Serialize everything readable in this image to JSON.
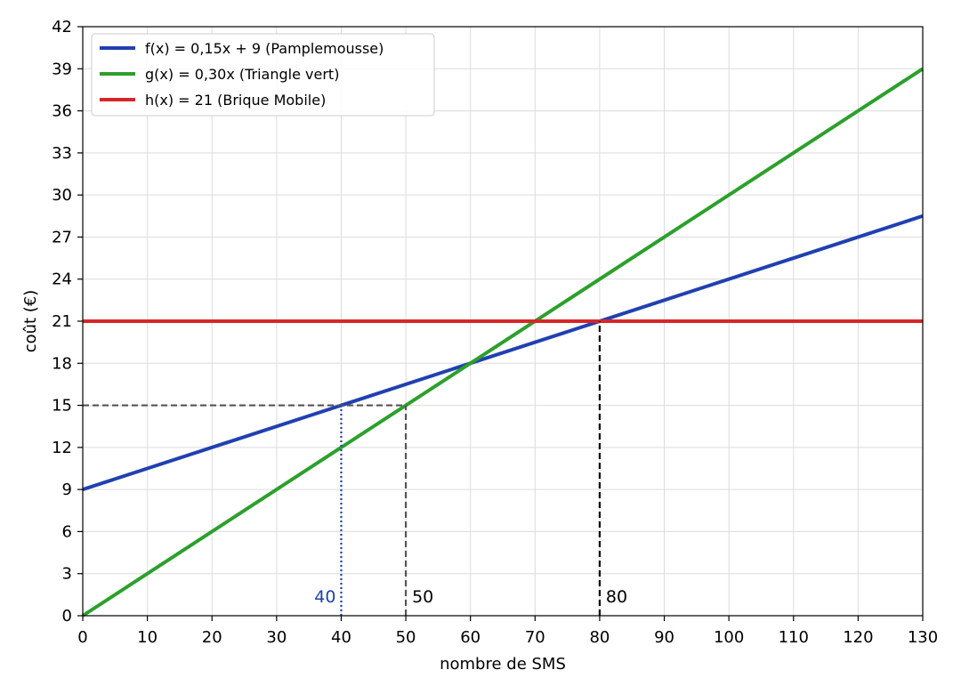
{
  "chart_data": {
    "type": "line",
    "title": "",
    "xlabel": "nombre de SMS",
    "ylabel": "coût (€)",
    "xlim": [
      0,
      130
    ],
    "ylim": [
      0,
      42
    ],
    "xticks": [
      0,
      10,
      20,
      30,
      40,
      50,
      60,
      70,
      80,
      90,
      100,
      110,
      120,
      130
    ],
    "yticks": [
      0,
      3,
      6,
      9,
      12,
      15,
      18,
      21,
      24,
      27,
      30,
      33,
      36,
      39,
      42
    ],
    "grid": true,
    "legend_position": "top-left",
    "series": [
      {
        "name": "f(x) = 0,15x + 9 (Pamplemousse)",
        "x": [
          0,
          130
        ],
        "y": [
          9,
          28.5
        ],
        "color": "#2140b0"
      },
      {
        "name": "g(x) = 0,30x (Triangle vert)",
        "x": [
          0,
          130
        ],
        "y": [
          0,
          39
        ],
        "color": "#2ca02c"
      },
      {
        "name": "h(x) = 21 (Brique Mobile)",
        "x": [
          0,
          130
        ],
        "y": [
          21,
          21
        ],
        "color": "#d62728"
      }
    ],
    "annotations": [
      {
        "label": "40",
        "x": 40,
        "y_from": 0,
        "y_to": 15,
        "style": "dotted",
        "color": "#2140b0",
        "label_side": "left"
      },
      {
        "label": "50",
        "x": 50,
        "y_from": 0,
        "y_to": 15,
        "style": "dashed",
        "color": "#555555",
        "label_side": "right"
      },
      {
        "label": "80",
        "x": 80,
        "y_from": 0,
        "y_to": 21,
        "style": "dashed",
        "color": "#000000",
        "label_side": "right"
      }
    ],
    "reference_lines": [
      {
        "y": 15,
        "x_from": 0,
        "x_to": 50,
        "style": "dashed",
        "color": "#555555"
      }
    ]
  }
}
